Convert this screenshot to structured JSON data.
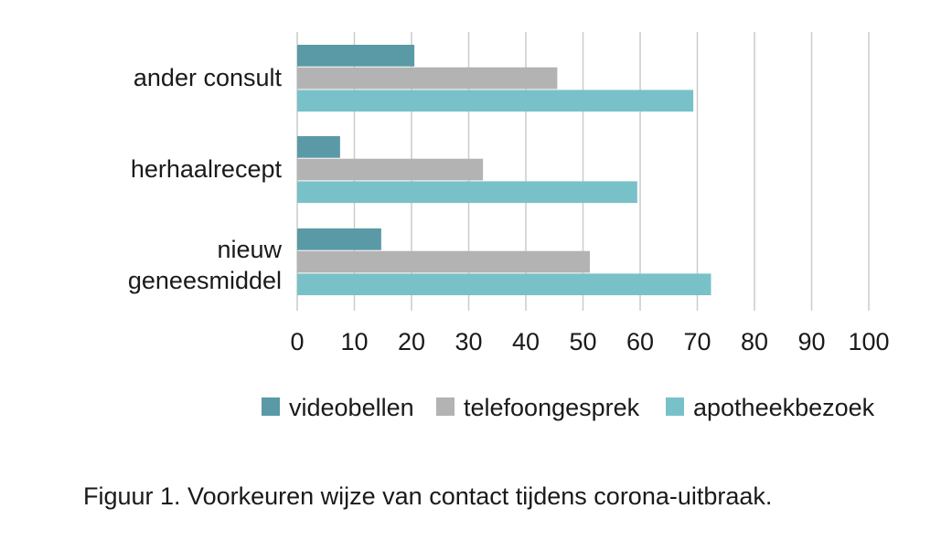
{
  "chart_data": {
    "type": "bar",
    "orientation": "horizontal",
    "categories": [
      {
        "label": "ander consult",
        "lines": [
          "ander consult"
        ]
      },
      {
        "label": "herhaalrecept",
        "lines": [
          "herhaalrecept"
        ]
      },
      {
        "label": "nieuw geneesmiddel",
        "lines": [
          "nieuw",
          "geneesmiddel"
        ]
      }
    ],
    "series": [
      {
        "name": "videobellen",
        "color": "#5a9aa6",
        "values": [
          20.5,
          7.5,
          14.7
        ]
      },
      {
        "name": "telefoongesprek",
        "color": "#b3b3b3",
        "values": [
          45.5,
          32.5,
          51.2
        ]
      },
      {
        "name": "apotheekbezoek",
        "color": "#79c1c8",
        "values": [
          69.3,
          59.5,
          72.4
        ]
      }
    ],
    "xlim": [
      0,
      100
    ],
    "xticks": [
      "0",
      "10",
      "20",
      "30",
      "40",
      "50",
      "60",
      "70",
      "80",
      "90",
      "100"
    ],
    "grid": true,
    "legend_position": "bottom"
  },
  "caption": "Figuur 1. Voorkeuren wijze van contact tijdens corona-uitbraak."
}
